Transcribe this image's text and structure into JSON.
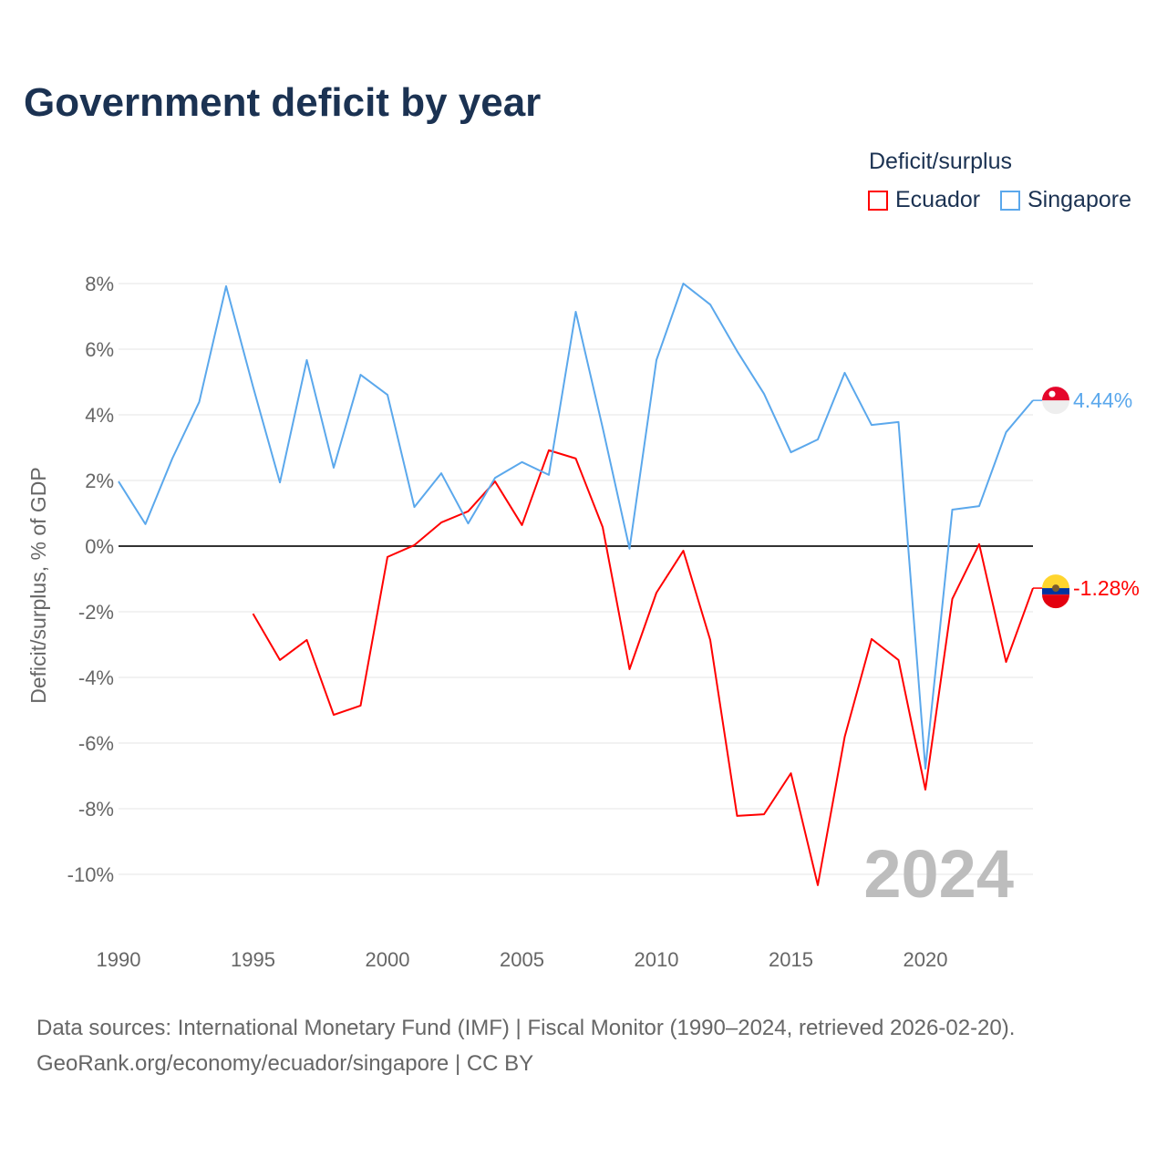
{
  "chart_data": {
    "type": "line",
    "title": "Government deficit by year",
    "ylabel": "Deficit/surplus, % of GDP",
    "xlabel": "",
    "xlim": [
      1990,
      2024
    ],
    "ylim": [
      -10,
      8
    ],
    "x_ticks": [
      "1990",
      "1995",
      "2000",
      "2005",
      "2010",
      "2015",
      "2020"
    ],
    "y_ticks": [
      "8%",
      "6%",
      "4%",
      "2%",
      "0%",
      "-2%",
      "-4%",
      "-6%",
      "-8%",
      "-10%"
    ],
    "legend_title": "Deficit/surplus",
    "legend_position": "top-right",
    "year_label": "2024",
    "series": [
      {
        "name": "Ecuador",
        "color": "#ff0000",
        "end_label": "-1.28%",
        "start_year": 1995,
        "values": [
          -2.06,
          -3.47,
          -2.86,
          -5.14,
          -4.86,
          -0.33,
          0.03,
          0.72,
          1.06,
          1.97,
          0.64,
          2.92,
          2.67,
          0.58,
          -3.75,
          -1.42,
          -0.14,
          -2.86,
          -8.22,
          -8.17,
          -6.92,
          -10.33,
          -5.81,
          -2.83,
          -3.47,
          -7.42,
          -1.61,
          0.06,
          -3.53,
          -1.28
        ]
      },
      {
        "name": "Singapore",
        "color": "#5ba8ec",
        "end_label": "4.44%",
        "start_year": 1990,
        "values": [
          1.97,
          0.67,
          2.67,
          4.39,
          7.92,
          4.86,
          1.94,
          5.67,
          2.39,
          5.22,
          4.61,
          1.19,
          2.22,
          0.69,
          2.08,
          2.56,
          2.17,
          7.14,
          3.61,
          -0.08,
          5.67,
          8.0,
          7.36,
          5.94,
          4.64,
          2.86,
          3.25,
          5.28,
          3.69,
          3.78,
          -6.78,
          1.11,
          1.22,
          3.47,
          4.44
        ]
      }
    ]
  },
  "source": {
    "line1": "Data sources: International Monetary Fund (IMF) | Fiscal Monitor (1990–2024, retrieved 2026-02-20).",
    "line2": "GeoRank.org/economy/ecuador/singapore | CC BY"
  }
}
